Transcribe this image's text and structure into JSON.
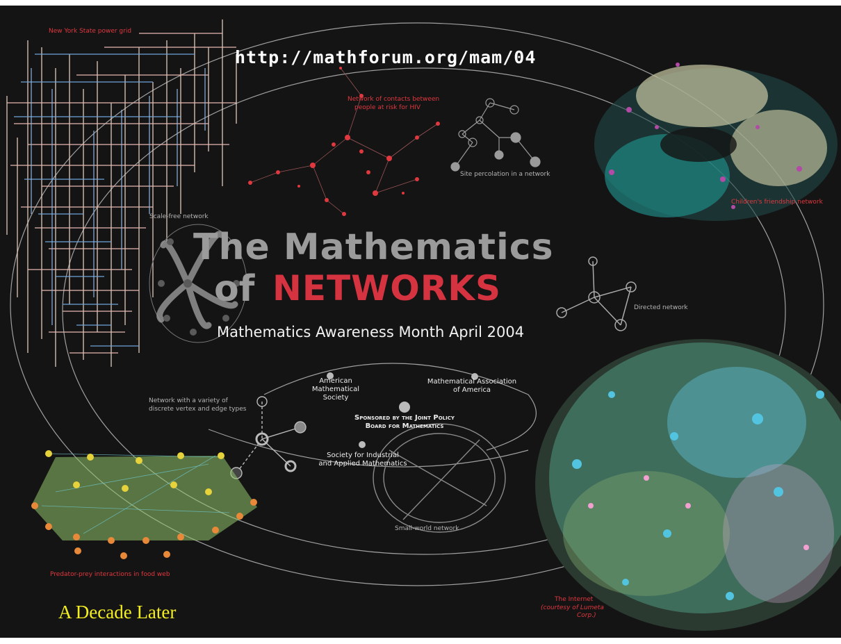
{
  "url": "http://mathforum.org/mam/04",
  "title_line1": "The Mathematics",
  "title_of": "of",
  "title_networks": "NETWORKS",
  "subtitle": "Mathematics Awareness Month April 2004",
  "labels": {
    "power_grid": "New York State power grid",
    "hiv_line1": "Network of contacts between",
    "hiv_line2": "people at risk for HIV",
    "percolation": "Site percolation in a network",
    "friendship": "Children's friendship network",
    "scale_free": "Scale-free network",
    "directed": "Directed network",
    "variety_line1": "Network with a variety of",
    "variety_line2": "discrete vertex and edge types",
    "small_world": "Small-world network",
    "food_web": "Predator-prey interactions in food web",
    "internet": "The Internet",
    "internet_credit_1": "(courtesy of Lumeta",
    "internet_credit_2": "Corp.)"
  },
  "sponsors": {
    "ams_1": "American",
    "ams_2": "Mathematical",
    "ams_3": "Society",
    "maa_1": "Mathematical Association",
    "maa_2": "of America",
    "jpbm_1": "Sponsored by the Joint Policy",
    "jpbm_2": "Board for Mathematics",
    "siam_1": "Society for Industrial",
    "siam_2": "and Applied Mathematics"
  },
  "caption": "A Decade Later",
  "colors": {
    "background": "#141414",
    "title_grey": "#9b9b9b",
    "networks_red": "#d63340",
    "label_red": "#e0383f",
    "caption_yellow": "#f3ee22"
  }
}
